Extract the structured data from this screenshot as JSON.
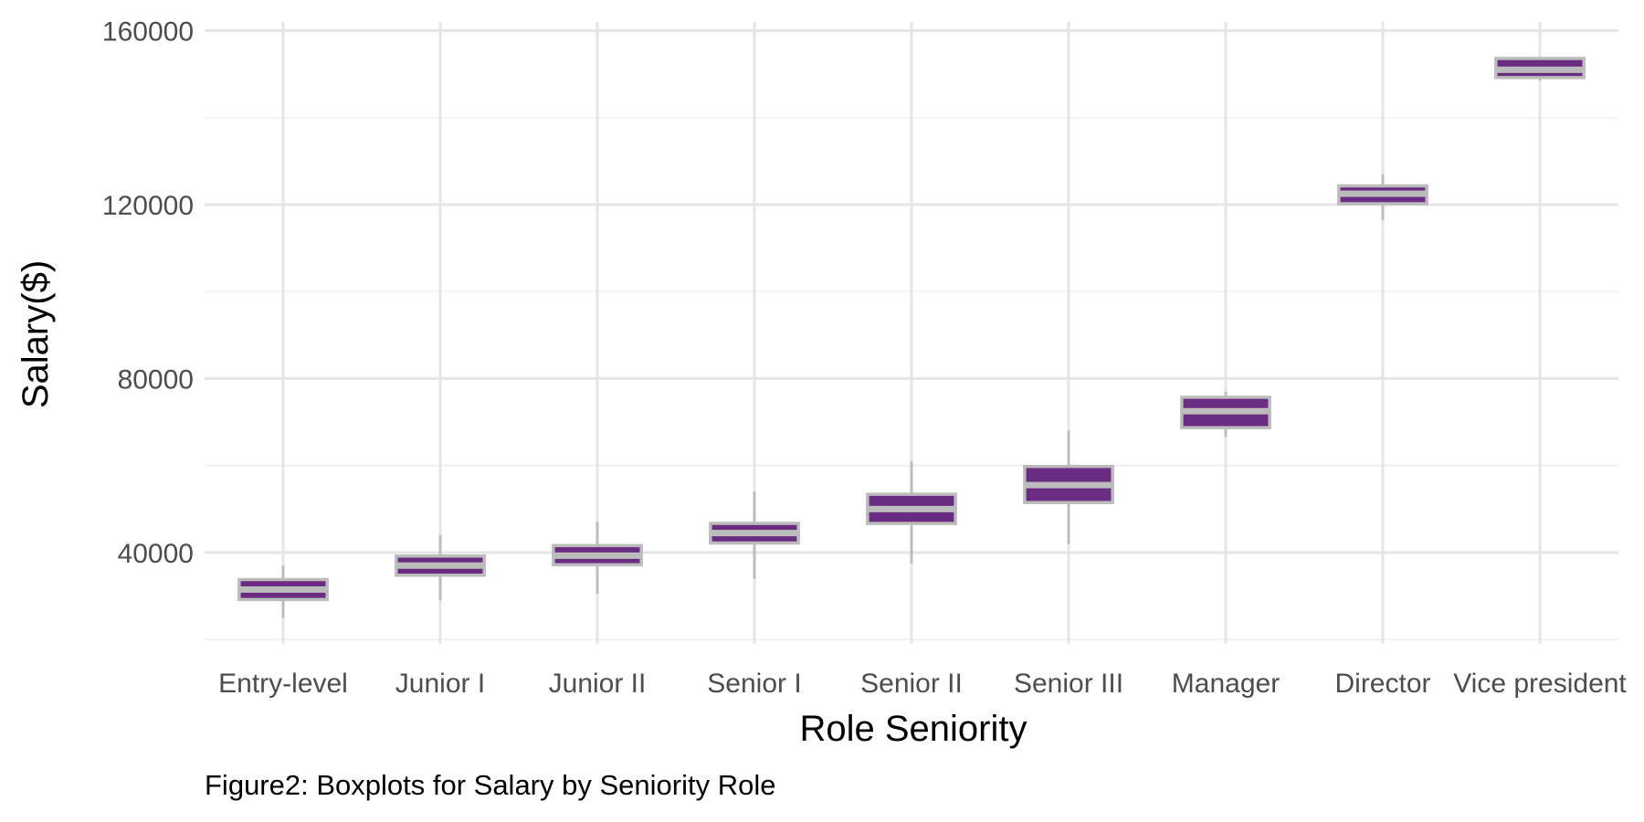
{
  "colors": {
    "box_fill": "#6a2c82",
    "box_outline": "#bcbcbc",
    "whisker": "#bcbcbc",
    "median": "#bcbcbc",
    "grid": "#e6e6e6"
  },
  "chart_data": {
    "type": "boxplot",
    "xlabel": "Role Seniority",
    "ylabel": "Salary($)",
    "caption": "Figure2: Boxplots for Salary by Seniority Role",
    "ylim": [
      19000,
      162000
    ],
    "yticks": [
      40000,
      80000,
      120000,
      160000
    ],
    "grid": true,
    "legend": "none",
    "categories": [
      "Entry-level",
      "Junior I",
      "Junior II",
      "Senior I",
      "Senior II",
      "Senior III",
      "Manager",
      "Director",
      "Vice president"
    ],
    "series": [
      {
        "category": "Entry-level",
        "min": 25000,
        "q1": 29200,
        "median": 31500,
        "q3": 33800,
        "max": 37000
      },
      {
        "category": "Junior I",
        "min": 29000,
        "q1": 34800,
        "median": 37000,
        "q3": 39200,
        "max": 44000
      },
      {
        "category": "Junior II",
        "min": 30500,
        "q1": 37200,
        "median": 39300,
        "q3": 41600,
        "max": 47000
      },
      {
        "category": "Senior I",
        "min": 34000,
        "q1": 42200,
        "median": 44500,
        "q3": 46700,
        "max": 54000
      },
      {
        "category": "Senior II",
        "min": 37500,
        "q1": 46700,
        "median": 50000,
        "q3": 53400,
        "max": 61000
      },
      {
        "category": "Senior III",
        "min": 42000,
        "q1": 51500,
        "median": 55500,
        "q3": 59800,
        "max": 68000
      },
      {
        "category": "Manager",
        "min": 66500,
        "q1": 68700,
        "median": 72500,
        "q3": 75700,
        "max": 77000
      },
      {
        "category": "Director",
        "min": 116500,
        "q1": 120200,
        "median": 122500,
        "q3": 124300,
        "max": 127000
      },
      {
        "category": "Vice president",
        "min": 148500,
        "q1": 149200,
        "median": 151000,
        "q3": 153600,
        "max": 154000
      }
    ]
  }
}
